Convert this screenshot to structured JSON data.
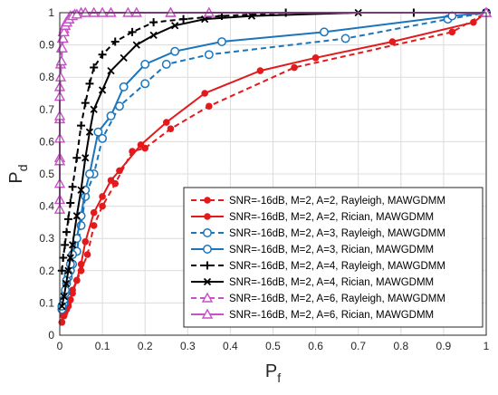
{
  "chart_data": {
    "type": "line",
    "xlabel": "P",
    "xlabel_sub": "f",
    "ylabel": "P",
    "ylabel_sub": "d",
    "xlim": [
      0,
      1
    ],
    "ylim": [
      0,
      1
    ],
    "xticks": [
      "0",
      "0.1",
      "0.2",
      "0.3",
      "0.4",
      "0.5",
      "0.6",
      "0.7",
      "0.8",
      "0.9",
      "1"
    ],
    "yticks": [
      "0",
      "0.1",
      "0.2",
      "0.3",
      "0.4",
      "0.5",
      "0.6",
      "0.7",
      "0.8",
      "0.9",
      "1"
    ],
    "grid": true,
    "legend_position": "bottom-right",
    "series": [
      {
        "name": "SNR=-16dB, M=2, A=2, Rayleigh, MAWGDMM",
        "color": "#e31a1c",
        "dash": true,
        "marker": "dot",
        "x": [
          0.005,
          0.008,
          0.012,
          0.016,
          0.02,
          0.025,
          0.03,
          0.04,
          0.05,
          0.065,
          0.08,
          0.1,
          0.13,
          0.17,
          0.2,
          0.26,
          0.35,
          0.55,
          0.92,
          1.0
        ],
        "y": [
          0.04,
          0.06,
          0.07,
          0.08,
          0.09,
          0.11,
          0.14,
          0.17,
          0.2,
          0.25,
          0.34,
          0.4,
          0.47,
          0.57,
          0.58,
          0.64,
          0.71,
          0.83,
          0.94,
          1.0
        ]
      },
      {
        "name": "SNR=-16dB, M=2, A=2, Rician, MAWGDMM",
        "color": "#e31a1c",
        "dash": false,
        "marker": "dot",
        "x": [
          0.005,
          0.01,
          0.015,
          0.02,
          0.03,
          0.04,
          0.05,
          0.06,
          0.08,
          0.1,
          0.12,
          0.14,
          0.19,
          0.25,
          0.34,
          0.47,
          0.6,
          0.78,
          0.97,
          1.0
        ],
        "y": [
          0.04,
          0.06,
          0.08,
          0.1,
          0.13,
          0.17,
          0.22,
          0.29,
          0.38,
          0.43,
          0.48,
          0.51,
          0.59,
          0.66,
          0.75,
          0.82,
          0.86,
          0.91,
          0.97,
          1.0
        ]
      },
      {
        "name": "SNR=-16dB, M=2, A=3, Rayleigh, MAWGDMM",
        "color": "#1b75bb",
        "dash": true,
        "marker": "circle",
        "x": [
          0.005,
          0.01,
          0.013,
          0.016,
          0.02,
          0.025,
          0.03,
          0.04,
          0.05,
          0.06,
          0.08,
          0.1,
          0.14,
          0.2,
          0.25,
          0.35,
          0.67,
          0.91,
          1.0
        ],
        "y": [
          0.08,
          0.1,
          0.13,
          0.16,
          0.18,
          0.2,
          0.22,
          0.26,
          0.34,
          0.43,
          0.5,
          0.61,
          0.71,
          0.78,
          0.84,
          0.87,
          0.92,
          0.98,
          1.0
        ]
      },
      {
        "name": "SNR=-16dB, M=2, A=3, Rician, MAWGDMM",
        "color": "#1b75bb",
        "dash": false,
        "marker": "circle",
        "x": [
          0.005,
          0.01,
          0.013,
          0.016,
          0.02,
          0.025,
          0.03,
          0.04,
          0.05,
          0.06,
          0.07,
          0.09,
          0.12,
          0.15,
          0.2,
          0.27,
          0.38,
          0.62,
          0.92,
          1.0
        ],
        "y": [
          0.09,
          0.11,
          0.14,
          0.17,
          0.19,
          0.22,
          0.25,
          0.3,
          0.37,
          0.45,
          0.5,
          0.63,
          0.68,
          0.77,
          0.84,
          0.88,
          0.91,
          0.94,
          0.99,
          1.0
        ]
      },
      {
        "name": "SNR=-16dB, M=2, A=4, Rayleigh, MAWGDMM",
        "color": "#000000",
        "dash": true,
        "marker": "plus",
        "x": [
          0.005,
          0.008,
          0.012,
          0.016,
          0.02,
          0.025,
          0.03,
          0.04,
          0.05,
          0.06,
          0.07,
          0.08,
          0.1,
          0.13,
          0.17,
          0.22,
          0.29,
          0.38,
          0.53,
          0.83,
          1.0
        ],
        "y": [
          0.2,
          0.24,
          0.28,
          0.32,
          0.36,
          0.41,
          0.46,
          0.55,
          0.65,
          0.72,
          0.78,
          0.83,
          0.87,
          0.91,
          0.94,
          0.97,
          0.98,
          0.99,
          1.0,
          1.0,
          1.0
        ]
      },
      {
        "name": "SNR=-16dB, M=2, A=4, Rician, MAWGDMM",
        "color": "#000000",
        "dash": false,
        "marker": "x",
        "x": [
          0.005,
          0.01,
          0.015,
          0.02,
          0.025,
          0.03,
          0.04,
          0.05,
          0.06,
          0.07,
          0.08,
          0.1,
          0.12,
          0.15,
          0.18,
          0.22,
          0.27,
          0.34,
          0.45,
          0.7,
          1.0
        ],
        "y": [
          0.09,
          0.12,
          0.16,
          0.2,
          0.24,
          0.28,
          0.37,
          0.45,
          0.55,
          0.63,
          0.7,
          0.76,
          0.82,
          0.86,
          0.9,
          0.93,
          0.96,
          0.98,
          0.99,
          1.0,
          1.0
        ]
      },
      {
        "name": "SNR=-16dB, M=2, A=6, Rayleigh, MAWGDMM",
        "color": "#c851c8",
        "dash": true,
        "marker": "triangle",
        "x": [
          0.0,
          0.0,
          0.0,
          0.0,
          0.002,
          0.004,
          0.006,
          0.008,
          0.01,
          0.012,
          0.015,
          0.02,
          0.025,
          0.035,
          0.05,
          0.08,
          0.12,
          0.18,
          0.26,
          0.35,
          1.0
        ],
        "y": [
          0.42,
          0.55,
          0.67,
          0.77,
          0.84,
          0.89,
          0.92,
          0.94,
          0.95,
          0.96,
          0.97,
          0.98,
          0.99,
          0.995,
          1.0,
          1.0,
          1.0,
          1.0,
          1.0,
          1.0,
          1.0
        ]
      },
      {
        "name": "SNR=-16dB, M=2, A=6, Rician, MAWGDMM",
        "color": "#c851c8",
        "dash": false,
        "marker": "triangle",
        "x": [
          0.0,
          0.0,
          0.0,
          0.0,
          0.0,
          0.0,
          0.002,
          0.004,
          0.006,
          0.008,
          0.01,
          0.013,
          0.017,
          0.022,
          0.03,
          0.04,
          0.06,
          0.1,
          0.16,
          0.26,
          1.0
        ],
        "y": [
          0.39,
          0.47,
          0.54,
          0.61,
          0.68,
          0.74,
          0.8,
          0.85,
          0.89,
          0.92,
          0.94,
          0.96,
          0.97,
          0.98,
          0.99,
          0.995,
          1.0,
          1.0,
          1.0,
          1.0,
          1.0
        ]
      }
    ]
  }
}
